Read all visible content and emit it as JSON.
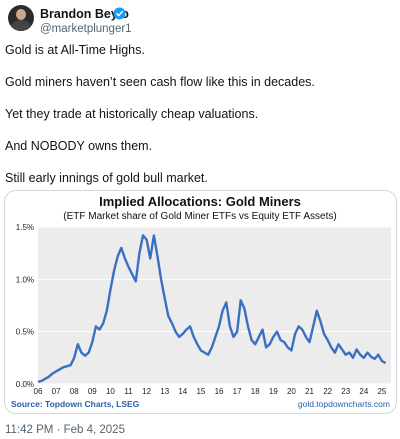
{
  "tweet": {
    "author_name": "Brandon Beylo",
    "handle": "@marketplunger1",
    "paragraphs": [
      "Gold is at All-Time Highs.",
      "Gold miners haven’t seen cash flow like this in decades.",
      "Yet they trade at historically cheap valuations.",
      "And NOBODY owns them.",
      "Still early innings of gold bull market."
    ],
    "timestamp": "11:42 PM · Feb 4, 2025",
    "icons": {
      "avatar": "avatar-photo",
      "verified": "verified-badge-icon"
    },
    "colors": {
      "verified": "#1d9bf0",
      "line": "#3a6fc2",
      "plot_bg": "#ececec",
      "source_text": "#2b5fa8"
    }
  },
  "chart_data": {
    "type": "line",
    "title": "Implied Allocations: Gold Miners",
    "subtitle": "(ETF Market share of Gold Miner ETFs vs Equity ETF Assets)",
    "xlabel": "",
    "ylabel": "",
    "source": "Source: Topdown Charts, LSEG",
    "watermark": "gold.topdowncharts.com",
    "x_ticks": [
      "06",
      "07",
      "08",
      "09",
      "10",
      "11",
      "12",
      "13",
      "14",
      "15",
      "16",
      "17",
      "18",
      "19",
      "20",
      "21",
      "22",
      "23",
      "24",
      "25"
    ],
    "y_ticks": [
      "0.0%",
      "0.5%",
      "1.0%",
      "1.5%"
    ],
    "ylim": [
      0,
      1.5
    ],
    "xlim": [
      2006,
      2025.5
    ],
    "grid": true,
    "series": [
      {
        "x": [
          2006.0,
          2006.2,
          2006.4,
          2006.6,
          2006.8,
          2007.0,
          2007.2,
          2007.4,
          2007.6,
          2007.8,
          2008.0,
          2008.2,
          2008.4,
          2008.6,
          2008.8,
          2009.0,
          2009.2,
          2009.4,
          2009.6,
          2009.8,
          2010.0,
          2010.2,
          2010.4,
          2010.6,
          2010.8,
          2011.0,
          2011.2,
          2011.4,
          2011.6,
          2011.8,
          2012.0,
          2012.2,
          2012.4,
          2012.6,
          2012.8,
          2013.0,
          2013.2,
          2013.4,
          2013.6,
          2013.8,
          2014.0,
          2014.2,
          2014.4,
          2014.6,
          2014.8,
          2015.0,
          2015.2,
          2015.4,
          2015.6,
          2015.8,
          2016.0,
          2016.2,
          2016.4,
          2016.6,
          2016.8,
          2017.0,
          2017.2,
          2017.4,
          2017.6,
          2017.8,
          2018.0,
          2018.2,
          2018.4,
          2018.6,
          2018.8,
          2019.0,
          2019.2,
          2019.4,
          2019.6,
          2019.8,
          2020.0,
          2020.2,
          2020.4,
          2020.6,
          2020.8,
          2021.0,
          2021.2,
          2021.4,
          2021.6,
          2021.8,
          2022.0,
          2022.2,
          2022.4,
          2022.6,
          2022.8,
          2023.0,
          2023.2,
          2023.4,
          2023.6,
          2023.8,
          2024.0,
          2024.2,
          2024.4,
          2024.6,
          2024.8,
          2025.0,
          2025.2
        ],
        "y": [
          0.02,
          0.03,
          0.05,
          0.07,
          0.1,
          0.12,
          0.14,
          0.16,
          0.17,
          0.18,
          0.25,
          0.38,
          0.3,
          0.27,
          0.3,
          0.4,
          0.55,
          0.52,
          0.58,
          0.7,
          0.9,
          1.08,
          1.22,
          1.3,
          1.2,
          1.12,
          1.05,
          0.98,
          1.25,
          1.42,
          1.38,
          1.2,
          1.42,
          1.22,
          1.0,
          0.82,
          0.65,
          0.58,
          0.5,
          0.45,
          0.48,
          0.52,
          0.55,
          0.45,
          0.38,
          0.32,
          0.3,
          0.28,
          0.35,
          0.45,
          0.55,
          0.7,
          0.78,
          0.55,
          0.45,
          0.5,
          0.8,
          0.72,
          0.55,
          0.42,
          0.38,
          0.45,
          0.52,
          0.35,
          0.38,
          0.45,
          0.5,
          0.42,
          0.4,
          0.35,
          0.32,
          0.48,
          0.55,
          0.52,
          0.45,
          0.4,
          0.55,
          0.7,
          0.6,
          0.48,
          0.42,
          0.35,
          0.3,
          0.38,
          0.33,
          0.28,
          0.3,
          0.25,
          0.33,
          0.28,
          0.25,
          0.3,
          0.26,
          0.24,
          0.28,
          0.22,
          0.2
        ]
      }
    ]
  }
}
